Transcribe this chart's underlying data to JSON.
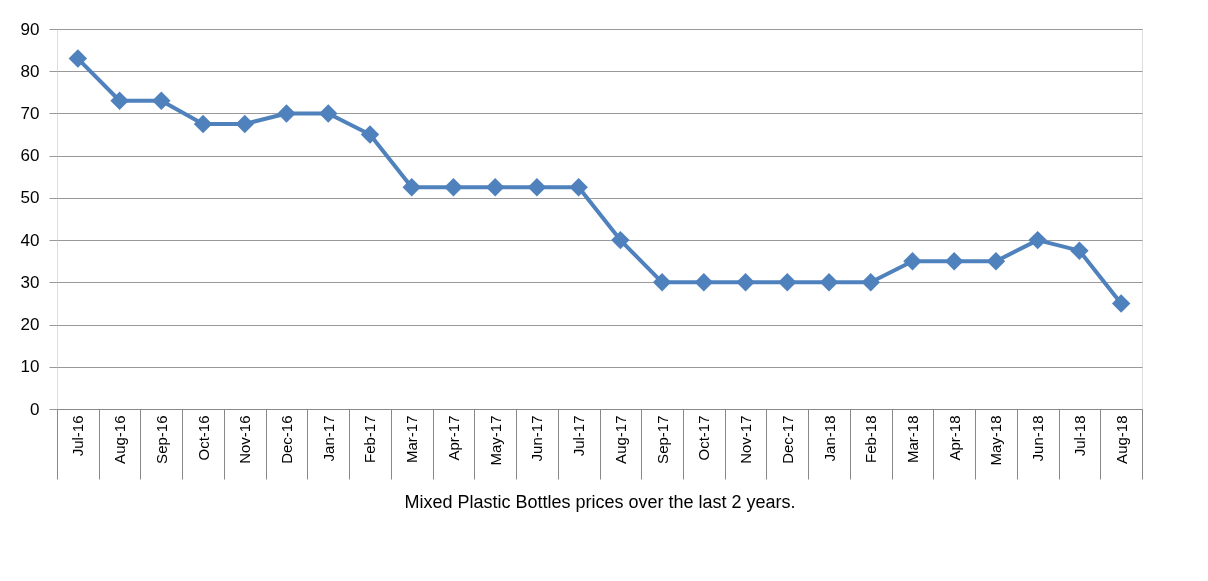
{
  "chart_data": {
    "type": "line",
    "xlabel": "Mixed Plastic Bottles prices over the last 2 years.",
    "categories": [
      "Jul-16",
      "Aug-16",
      "Sep-16",
      "Oct-16",
      "Nov-16",
      "Dec-16",
      "Jan-17",
      "Feb-17",
      "Mar-17",
      "Apr-17",
      "May-17",
      "Jun-17",
      "Jul-17",
      "Aug-17",
      "Sep-17",
      "Oct-17",
      "Nov-17",
      "Dec-17",
      "Jan-18",
      "Feb-18",
      "Mar-18",
      "Apr-18",
      "May-18",
      "Jun-18",
      "Jul-18",
      "Aug-18"
    ],
    "series": [
      {
        "color": "#4f81bd",
        "values": [
          83,
          73,
          73,
          67.5,
          67.5,
          70,
          70,
          65,
          52.5,
          52.5,
          52.5,
          52.5,
          52.5,
          40,
          30,
          30,
          30,
          30,
          30,
          30,
          35,
          35,
          35,
          40,
          37.5,
          25
        ]
      }
    ],
    "ylim": [
      0,
      90
    ],
    "yticks": [
      0,
      10,
      20,
      30,
      40,
      50,
      60,
      70,
      80,
      90
    ],
    "grid": "y",
    "marker": "diamond",
    "line_style": "solid"
  }
}
